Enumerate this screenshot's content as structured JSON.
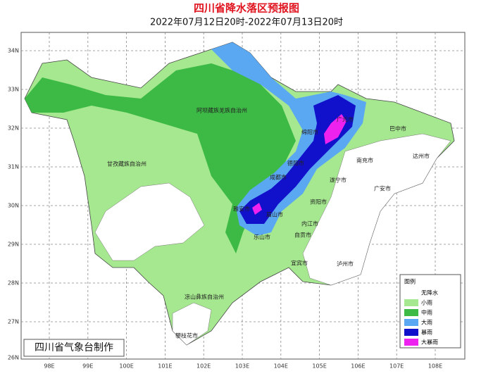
{
  "header": {
    "title": "四川省降水落区预报图",
    "subtitle": "2022年07月12日20时-2022年07月13日20时"
  },
  "axes": {
    "latitude": [
      "34N",
      "33N",
      "32N",
      "31N",
      "30N",
      "29N",
      "28N",
      "27N",
      "26N"
    ],
    "longitude": [
      "98E",
      "99E",
      "100E",
      "101E",
      "102E",
      "103E",
      "104E",
      "105E",
      "106E",
      "107E",
      "108E"
    ]
  },
  "regions": [
    "阿坝藏族羌族自治州",
    "甘孜藏族自治州",
    "凉山彝族自治州",
    "绵阳市",
    "广元市",
    "巴中市",
    "达州市",
    "南充市",
    "德阳市",
    "遂宁市",
    "广安市",
    "成都市",
    "资阳市",
    "眉山市",
    "雅安市",
    "乐山市",
    "内江市",
    "自贡市",
    "宜宾市",
    "泸州市",
    "攀枝花市"
  ],
  "legend": {
    "title": "图例",
    "items": [
      "无降水",
      "小雨",
      "中雨",
      "大雨",
      "暴雨",
      "大暴雨"
    ]
  },
  "credit": "四川省气象台制作"
}
